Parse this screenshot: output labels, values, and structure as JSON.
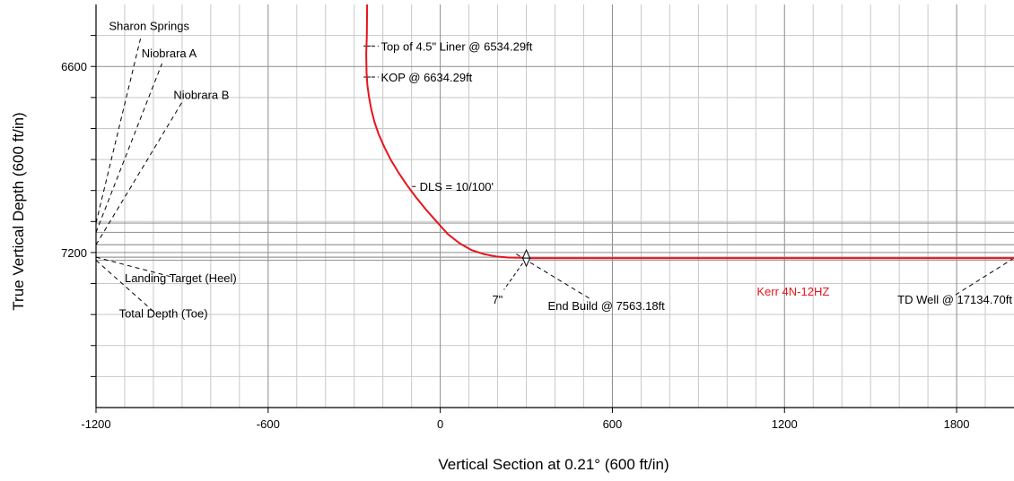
{
  "chart_data": {
    "type": "line",
    "xlabel": "Vertical Section at 0.21° (600 ft/in)",
    "ylabel": "True Vertical Depth (600 ft/in)",
    "xlim": [
      -1200,
      2000
    ],
    "ylim": [
      6400,
      7700
    ],
    "y_inverted": true,
    "grid": true,
    "x_ticks": [
      -1200,
      -600,
      0,
      600,
      1200,
      1800
    ],
    "x_tick_labels": [
      "-1200",
      "-600",
      "0",
      "600",
      "1200",
      "1800"
    ],
    "y_ticks": [
      6600,
      7200
    ],
    "y_tick_labels": [
      "6600",
      "7200"
    ],
    "formations": [
      {
        "name": "Sharon Springs",
        "tvd": 7105
      },
      {
        "name": "Niobrara A",
        "tvd": 7135
      },
      {
        "name": "Niobrara B",
        "tvd": 7175
      },
      {
        "name": "Landing Target (Heel)",
        "tvd": 7215
      },
      {
        "name": "Total Depth (Toe)",
        "tvd": 7225
      }
    ],
    "series": [
      {
        "name": "Kerr 4N-12HZ",
        "color": "#e8141c",
        "x": [
          -255,
          -256,
          -258,
          -257,
          -254,
          -248,
          -240,
          -229,
          -214,
          -195,
          -173,
          -147,
          -118,
          -86,
          -51,
          -13,
          26,
          67,
          109,
          152,
          195,
          238,
          282,
          300,
          600,
          1200,
          2000
        ],
        "y": [
          6400,
          6500,
          6560,
          6620,
          6660,
          6700,
          6740,
          6780,
          6820,
          6860,
          6900,
          6940,
          6980,
          7020,
          7060,
          7100,
          7140,
          7170,
          7192,
          7205,
          7213,
          7216,
          7217,
          7218,
          7218,
          7218,
          7218
        ]
      }
    ],
    "annotations": [
      {
        "label": "Top of 4.5\" Liner @ 6534.29ft",
        "x": -255,
        "y": 6534
      },
      {
        "label": "KOP @ 6634.29ft",
        "x": -255,
        "y": 6634
      },
      {
        "label": "DLS = 10/100'",
        "x": -107,
        "y": 6987
      },
      {
        "label": "7\"",
        "x": 300,
        "y": 7218
      },
      {
        "label": "End Build @ 7563.18ft",
        "x": 300,
        "y": 7218
      },
      {
        "label": "TD Well @ 17134.70ft",
        "x": 2000,
        "y": 7218
      },
      {
        "label": "Kerr 4N-12HZ",
        "x": 1230,
        "y": 7325
      }
    ]
  }
}
